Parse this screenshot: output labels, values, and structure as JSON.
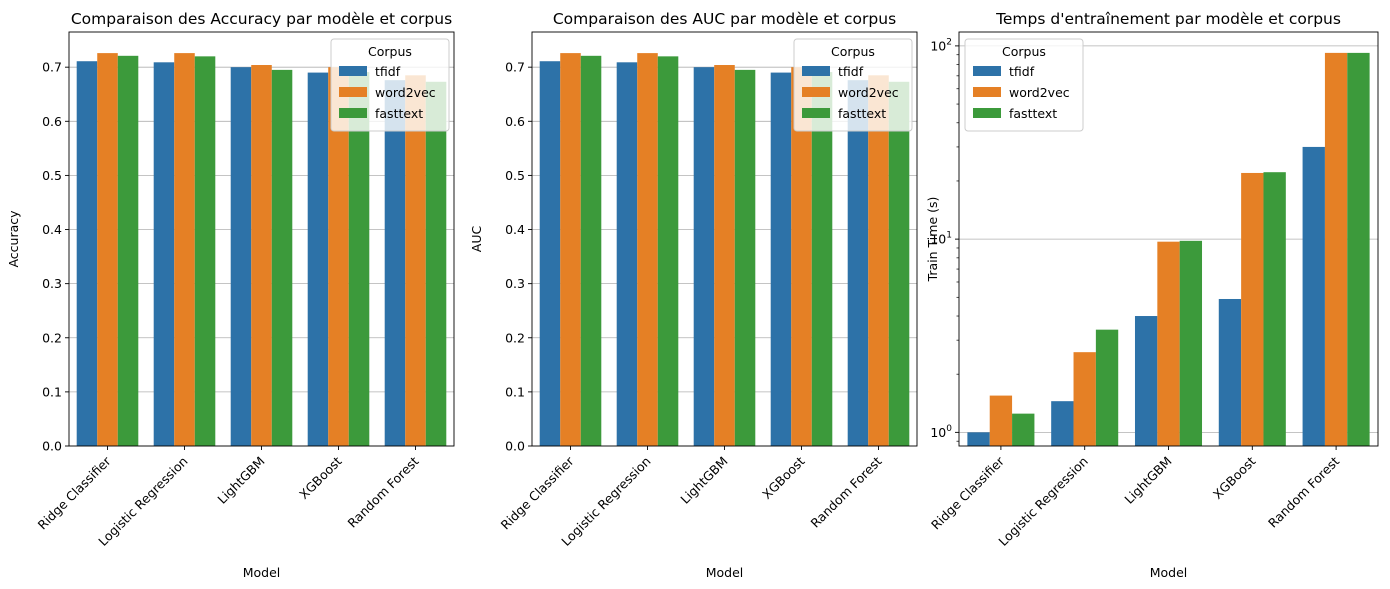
{
  "colors": {
    "tfidf": "#2d72a8",
    "word2vec": "#e58025",
    "fasttext": "#3c9a3b",
    "grid": "#b0b0b0"
  },
  "chart_data": [
    {
      "type": "bar",
      "title": "Comparaison des Accuracy par modèle et corpus",
      "xlabel": "Model",
      "ylabel": "Accuracy",
      "scale": "linear",
      "ylim": [
        0,
        0.765
      ],
      "yticks": [
        0.0,
        0.1,
        0.2,
        0.3,
        0.4,
        0.5,
        0.6,
        0.7
      ],
      "ytick_labels": [
        "0.0",
        "0.1",
        "0.2",
        "0.3",
        "0.4",
        "0.5",
        "0.6",
        "0.7"
      ],
      "grid": "y",
      "legend": {
        "title": "Corpus",
        "placement": "top-right"
      },
      "categories": [
        "Ridge Classifier",
        "Logistic Regression",
        "LightGBM",
        "XGBoost",
        "Random Forest"
      ],
      "series": [
        {
          "name": "tfidf",
          "values": [
            0.711,
            0.709,
            0.7,
            0.69,
            0.676
          ]
        },
        {
          "name": "word2vec",
          "values": [
            0.726,
            0.726,
            0.704,
            0.7,
            0.685
          ]
        },
        {
          "name": "fasttext",
          "values": [
            0.721,
            0.72,
            0.695,
            0.691,
            0.673
          ]
        }
      ]
    },
    {
      "type": "bar",
      "title": "Comparaison des AUC par modèle et corpus",
      "xlabel": "Model",
      "ylabel": "AUC",
      "scale": "linear",
      "ylim": [
        0,
        0.765
      ],
      "yticks": [
        0.0,
        0.1,
        0.2,
        0.3,
        0.4,
        0.5,
        0.6,
        0.7
      ],
      "ytick_labels": [
        "0.0",
        "0.1",
        "0.2",
        "0.3",
        "0.4",
        "0.5",
        "0.6",
        "0.7"
      ],
      "grid": "y",
      "legend": {
        "title": "Corpus",
        "placement": "top-right"
      },
      "categories": [
        "Ridge Classifier",
        "Logistic Regression",
        "LightGBM",
        "XGBoost",
        "Random Forest"
      ],
      "series": [
        {
          "name": "tfidf",
          "values": [
            0.711,
            0.709,
            0.7,
            0.69,
            0.676
          ]
        },
        {
          "name": "word2vec",
          "values": [
            0.726,
            0.726,
            0.704,
            0.7,
            0.685
          ]
        },
        {
          "name": "fasttext",
          "values": [
            0.721,
            0.72,
            0.695,
            0.691,
            0.673
          ]
        }
      ]
    },
    {
      "type": "bar",
      "title": "Temps d'entraînement par modèle et corpus",
      "xlabel": "Model",
      "ylabel": "Train Time (s)",
      "scale": "log",
      "ylim": [
        0.85,
        118
      ],
      "yticks": [
        1,
        10,
        100
      ],
      "ytick_labels": [
        "10",
        "10",
        "10"
      ],
      "ytick_exponents": [
        "0",
        "1",
        "2"
      ],
      "grid": "y",
      "legend": {
        "title": "Corpus",
        "placement": "top-left"
      },
      "categories": [
        "Ridge Classifier",
        "Logistic Regression",
        "LightGBM",
        "XGBoost",
        "Random Forest"
      ],
      "series": [
        {
          "name": "tfidf",
          "values": [
            1.0,
            1.45,
            4.0,
            4.9,
            30.0
          ]
        },
        {
          "name": "word2vec",
          "values": [
            1.55,
            2.6,
            9.7,
            22.0,
            92.0
          ]
        },
        {
          "name": "fasttext",
          "values": [
            1.25,
            3.4,
            9.8,
            22.2,
            92.0
          ]
        }
      ]
    }
  ]
}
